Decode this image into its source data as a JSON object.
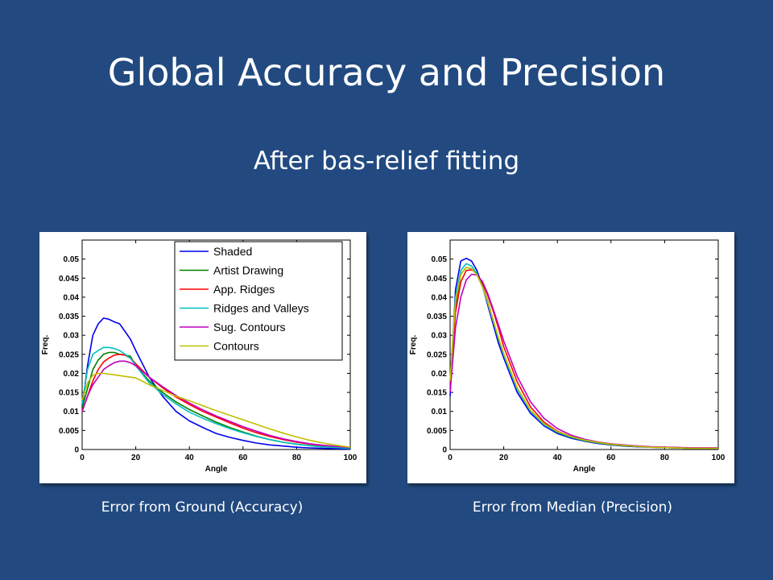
{
  "slide": {
    "title": "Global Accuracy and Precision",
    "subtitle": "After bas-relief fitting"
  },
  "captions": {
    "left": "Error from Ground (Accuracy)",
    "right": "Error from Median (Precision)"
  },
  "chart_data": [
    {
      "type": "line",
      "xlabel": "Angle",
      "ylabel": "Freq.",
      "xlim": [
        0,
        100
      ],
      "ylim": [
        0,
        0.055
      ],
      "xticks": [
        0,
        20,
        40,
        60,
        80,
        100
      ],
      "yticks": [
        0,
        0.005,
        0.01,
        0.015,
        0.02,
        0.025,
        0.03,
        0.035,
        0.04,
        0.045,
        0.05
      ],
      "xtick_labels": [
        "0",
        "20",
        "40",
        "60",
        "80",
        "100"
      ],
      "ytick_labels": [
        "0",
        "0.005",
        "0.01",
        "0.015",
        "0.02",
        "0.025",
        "0.03",
        "0.035",
        "0.04",
        "0.045",
        "0.05"
      ],
      "grid": false,
      "legend": "top-right",
      "x": [
        0,
        2,
        4,
        6,
        8,
        10,
        12,
        14,
        16,
        18,
        20,
        25,
        30,
        35,
        40,
        45,
        50,
        55,
        60,
        65,
        70,
        75,
        80,
        85,
        90,
        95,
        100
      ],
      "series": [
        {
          "name": "Shaded",
          "color": "#0000ee",
          "values": [
            0.011,
            0.022,
            0.03,
            0.033,
            0.0345,
            0.0342,
            0.0335,
            0.033,
            0.031,
            0.029,
            0.026,
            0.019,
            0.014,
            0.01,
            0.0075,
            0.0058,
            0.0042,
            0.0032,
            0.0024,
            0.0017,
            0.0012,
            0.0009,
            0.0006,
            0.0004,
            0.0003,
            0.0002,
            0.0001
          ]
        },
        {
          "name": "Artist Drawing",
          "color": "#008000",
          "values": [
            0.011,
            0.016,
            0.021,
            0.0235,
            0.025,
            0.0255,
            0.0255,
            0.025,
            0.0248,
            0.0245,
            0.022,
            0.018,
            0.015,
            0.0125,
            0.0105,
            0.0088,
            0.0072,
            0.0058,
            0.0046,
            0.0035,
            0.0026,
            0.0019,
            0.0014,
            0.001,
            0.0007,
            0.0005,
            0.0003
          ]
        },
        {
          "name": "App. Ridges",
          "color": "#ff0000",
          "values": [
            0.01,
            0.014,
            0.018,
            0.021,
            0.023,
            0.024,
            0.0248,
            0.025,
            0.0248,
            0.024,
            0.0225,
            0.019,
            0.0162,
            0.0138,
            0.0118,
            0.01,
            0.0085,
            0.007,
            0.0056,
            0.0044,
            0.0034,
            0.0026,
            0.0019,
            0.0014,
            0.001,
            0.0007,
            0.0005
          ]
        },
        {
          "name": "Ridges and Valleys",
          "color": "#00bfbf",
          "values": [
            0.012,
            0.021,
            0.025,
            0.026,
            0.0268,
            0.0268,
            0.0265,
            0.026,
            0.025,
            0.024,
            0.022,
            0.0175,
            0.0145,
            0.012,
            0.0098,
            0.0082,
            0.0068,
            0.0055,
            0.0044,
            0.0034,
            0.0026,
            0.0019,
            0.0014,
            0.001,
            0.0007,
            0.0005,
            0.0003
          ]
        },
        {
          "name": "Sug. Contours",
          "color": "#bf00bf",
          "values": [
            0.01,
            0.014,
            0.017,
            0.019,
            0.021,
            0.022,
            0.0228,
            0.0232,
            0.0232,
            0.0228,
            0.022,
            0.019,
            0.0165,
            0.0142,
            0.0122,
            0.0104,
            0.0088,
            0.0074,
            0.006,
            0.0048,
            0.0037,
            0.0028,
            0.0021,
            0.0015,
            0.0011,
            0.0008,
            0.0005
          ]
        },
        {
          "name": "Contours",
          "color": "#bfbf00",
          "values": [
            0.013,
            0.0175,
            0.0195,
            0.02,
            0.02,
            0.0198,
            0.0196,
            0.0194,
            0.0192,
            0.019,
            0.0188,
            0.017,
            0.0155,
            0.014,
            0.0128,
            0.0115,
            0.0102,
            0.009,
            0.0078,
            0.0066,
            0.0054,
            0.0043,
            0.0033,
            0.0024,
            0.0017,
            0.0011,
            0.0006
          ]
        }
      ]
    },
    {
      "type": "line",
      "xlabel": "Angle",
      "ylabel": "Freq.",
      "xlim": [
        0,
        100
      ],
      "ylim": [
        0,
        0.055
      ],
      "xticks": [
        0,
        20,
        40,
        60,
        80,
        100
      ],
      "yticks": [
        0,
        0.005,
        0.01,
        0.015,
        0.02,
        0.025,
        0.03,
        0.035,
        0.04,
        0.045,
        0.05
      ],
      "xtick_labels": [
        "0",
        "20",
        "40",
        "60",
        "80",
        "100"
      ],
      "ytick_labels": [
        "0",
        "0.005",
        "0.01",
        "0.015",
        "0.02",
        "0.025",
        "0.03",
        "0.035",
        "0.04",
        "0.045",
        "0.05"
      ],
      "grid": false,
      "legend": "none",
      "x": [
        0,
        2,
        4,
        6,
        8,
        10,
        12,
        14,
        16,
        18,
        20,
        25,
        30,
        35,
        40,
        45,
        50,
        55,
        60,
        65,
        70,
        75,
        80,
        85,
        90,
        95,
        100
      ],
      "series": [
        {
          "color": "#0000ee",
          "values": [
            0.014,
            0.042,
            0.0495,
            0.0502,
            0.0495,
            0.047,
            0.043,
            0.038,
            0.033,
            0.028,
            0.024,
            0.015,
            0.0095,
            0.0062,
            0.0042,
            0.003,
            0.0022,
            0.0016,
            0.0012,
            0.0009,
            0.0007,
            0.0006,
            0.0005,
            0.0004,
            0.0003,
            0.0003,
            0.0003
          ]
        },
        {
          "color": "#008000",
          "values": [
            0.016,
            0.038,
            0.046,
            0.0478,
            0.0475,
            0.046,
            0.043,
            0.039,
            0.034,
            0.029,
            0.025,
            0.016,
            0.0102,
            0.0066,
            0.0045,
            0.0032,
            0.0023,
            0.0017,
            0.0013,
            0.001,
            0.0008,
            0.0006,
            0.0005,
            0.0004,
            0.0003,
            0.0003,
            0.0003
          ]
        },
        {
          "color": "#ff0000",
          "values": [
            0.017,
            0.036,
            0.044,
            0.047,
            0.0472,
            0.0462,
            0.0438,
            0.0405,
            0.0365,
            0.032,
            0.027,
            0.0178,
            0.0112,
            0.0072,
            0.0048,
            0.0034,
            0.0024,
            0.0018,
            0.0014,
            0.0011,
            0.0009,
            0.0007,
            0.0006,
            0.0005,
            0.0004,
            0.0004,
            0.0004
          ]
        },
        {
          "color": "#00bfbf",
          "values": [
            0.018,
            0.04,
            0.047,
            0.0488,
            0.0482,
            0.0462,
            0.0428,
            0.0385,
            0.0338,
            0.0292,
            0.0248,
            0.0158,
            0.01,
            0.0065,
            0.0046,
            0.0033,
            0.0024,
            0.0018,
            0.0014,
            0.0011,
            0.0008,
            0.0006,
            0.0005,
            0.0004,
            0.0003,
            0.0003,
            0.0003
          ]
        },
        {
          "color": "#bf00bf",
          "values": [
            0.015,
            0.032,
            0.04,
            0.0445,
            0.046,
            0.0458,
            0.0442,
            0.041,
            0.037,
            0.0328,
            0.0285,
            0.0192,
            0.0125,
            0.0082,
            0.0055,
            0.0038,
            0.0027,
            0.002,
            0.0015,
            0.0012,
            0.0009,
            0.0007,
            0.0006,
            0.0005,
            0.0004,
            0.0004,
            0.0004
          ]
        },
        {
          "color": "#bfbf00",
          "values": [
            0.018,
            0.039,
            0.046,
            0.0478,
            0.0475,
            0.0458,
            0.0428,
            0.0388,
            0.0342,
            0.0295,
            0.0252,
            0.0162,
            0.0103,
            0.0068,
            0.0047,
            0.0034,
            0.0025,
            0.0019,
            0.0014,
            0.0011,
            0.0008,
            0.0006,
            0.0005,
            0.0004,
            0.0003,
            0.0003,
            0.0003
          ]
        }
      ]
    }
  ]
}
